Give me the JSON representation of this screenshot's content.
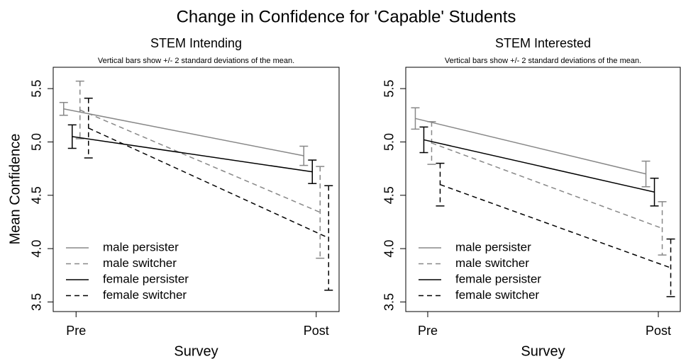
{
  "title": "Change in Confidence for 'Capable' Students",
  "chart_data": [
    {
      "type": "line",
      "title": "STEM Intending",
      "subtitle": "Vertical bars show +/- 2 standard deviations of the mean.",
      "xlabel": "Survey",
      "ylabel": "Mean Confidence",
      "categories": [
        "Pre",
        "Post"
      ],
      "ylim": [
        3.41,
        5.7
      ],
      "yticks": [
        3.5,
        {
          "value": 4,
          "label": "4.0"
        },
        4.5,
        {
          "value": 5,
          "label": "5.0"
        },
        5.5
      ],
      "legend": "lower left",
      "series": [
        {
          "name": "male persister",
          "color": "#888888",
          "linestyle": "solid",
          "values": [
            5.31,
            4.87
          ],
          "errors": [
            0.06,
            0.09
          ]
        },
        {
          "name": "male switcher",
          "color": "#888888",
          "linestyle": "dashed",
          "values": [
            5.3,
            4.34
          ],
          "errors": [
            0.27,
            0.43
          ]
        },
        {
          "name": "female persister",
          "color": "#000000",
          "linestyle": "solid",
          "values": [
            5.05,
            4.72
          ],
          "errors": [
            0.11,
            0.11
          ]
        },
        {
          "name": "female switcher",
          "color": "#000000",
          "linestyle": "dashed",
          "values": [
            5.13,
            4.1
          ],
          "errors": [
            0.28,
            0.49
          ]
        }
      ]
    },
    {
      "type": "line",
      "title": "STEM Interested",
      "subtitle": "Vertical bars show +/- 2 standard deviations of the mean.",
      "xlabel": "Survey",
      "categories": [
        "Pre",
        "Post"
      ],
      "ylim": [
        3.41,
        5.7
      ],
      "yticks": [
        3.5,
        {
          "value": 4,
          "label": "4.0"
        },
        4.5,
        {
          "value": 5,
          "label": "5.0"
        },
        5.5
      ],
      "legend": "lower left",
      "series": [
        {
          "name": "male persister",
          "color": "#888888",
          "linestyle": "solid",
          "values": [
            5.22,
            4.7
          ],
          "errors": [
            0.1,
            0.12
          ]
        },
        {
          "name": "male switcher",
          "color": "#888888",
          "linestyle": "dashed",
          "values": [
            4.99,
            4.19
          ],
          "errors": [
            0.2,
            0.25
          ]
        },
        {
          "name": "female persister",
          "color": "#000000",
          "linestyle": "solid",
          "values": [
            5.02,
            4.53
          ],
          "errors": [
            0.12,
            0.13
          ]
        },
        {
          "name": "female switcher",
          "color": "#000000",
          "linestyle": "dashed",
          "values": [
            4.6,
            3.82
          ],
          "errors": [
            0.2,
            0.27
          ]
        }
      ]
    }
  ]
}
